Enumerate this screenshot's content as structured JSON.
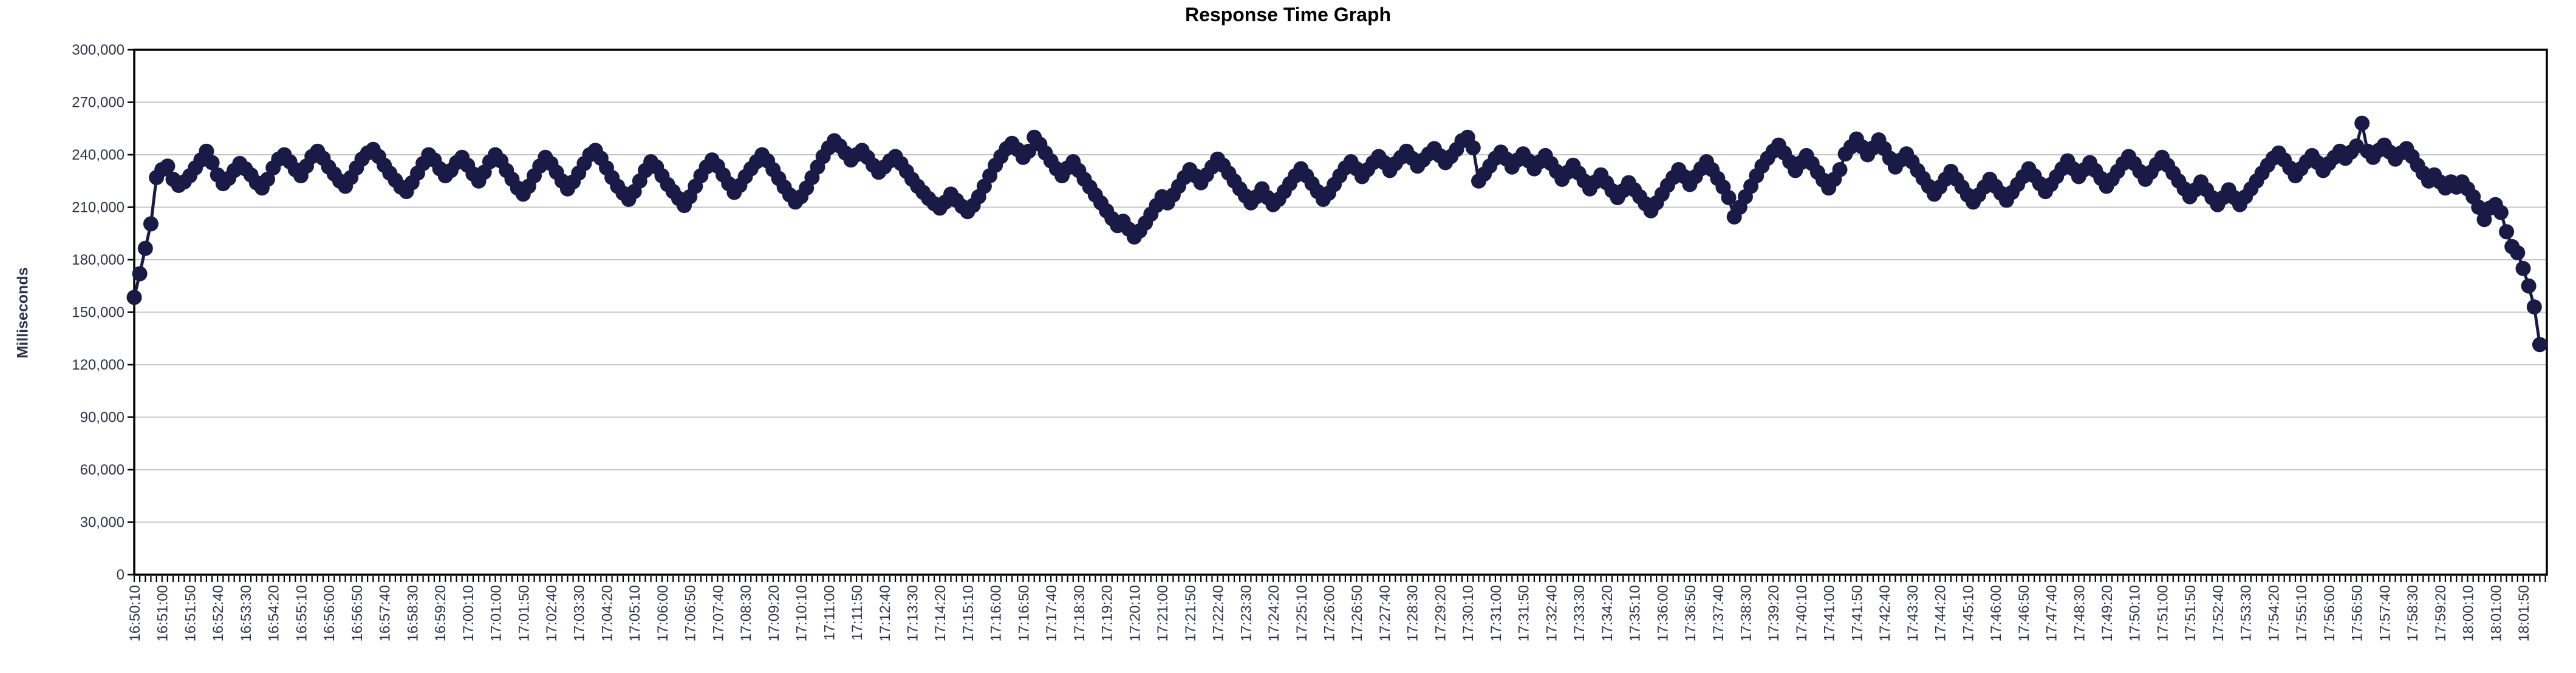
{
  "title": "Response Time Graph",
  "y_axis": {
    "title": "Milliseconds",
    "tick_labels": [
      "0",
      "30,000",
      "60,000",
      "90,000",
      "120,000",
      "150,000",
      "180,000",
      "210,000",
      "240,000",
      "270,000",
      "300,000"
    ]
  },
  "x_axis": {
    "start": "16:50:10",
    "end": "18:01:50",
    "label_interval_seconds": 50,
    "minor_tick_seconds": 10,
    "tick_labels": [
      "16:50:10",
      "16:51:00",
      "16:51:50",
      "16:52:40",
      "16:53:30",
      "16:54:20",
      "16:55:10",
      "16:56:00",
      "16:56:50",
      "16:57:40",
      "16:58:30",
      "16:59:20",
      "17:00:10",
      "17:01:00",
      "17:01:50",
      "17:02:40",
      "17:03:30",
      "17:04:20",
      "17:05:10",
      "17:06:00",
      "17:06:50",
      "17:07:40",
      "17:08:30",
      "17:09:20",
      "17:10:10",
      "17:11:00",
      "17:11:50",
      "17:12:40",
      "17:13:30",
      "17:14:20",
      "17:15:10",
      "17:16:00",
      "17:16:50",
      "17:17:40",
      "17:18:30",
      "17:19:20",
      "17:20:10",
      "17:21:00",
      "17:21:50",
      "17:22:40",
      "17:23:30",
      "17:24:20",
      "17:25:10",
      "17:26:00",
      "17:26:50",
      "17:27:40",
      "17:28:30",
      "17:29:20",
      "17:30:10",
      "17:31:00",
      "17:31:50",
      "17:32:40",
      "17:33:30",
      "17:34:20",
      "17:35:10",
      "17:36:00",
      "17:36:50",
      "17:37:40",
      "17:38:30",
      "17:39:20",
      "17:40:10",
      "17:41:00",
      "17:41:50",
      "17:42:40",
      "17:43:30",
      "17:44:20",
      "17:45:10",
      "17:46:00",
      "17:46:50",
      "17:47:40",
      "17:48:30",
      "17:49:20",
      "17:50:10",
      "17:51:00",
      "17:51:50",
      "17:52:40",
      "17:53:30",
      "17:54:20",
      "17:55:10",
      "17:56:00",
      "17:56:50",
      "17:57:40",
      "17:58:30",
      "17:59:20",
      "18:00:10",
      "18:01:00",
      "18:01:50"
    ]
  },
  "colors": {
    "series": "#1a1a46",
    "grid": "#c6c6c6",
    "axis": "#000000",
    "tick_text": "#30304a",
    "title_text": "#000000",
    "background": "#ffffff"
  },
  "chart_data": {
    "type": "line",
    "title": "Response Time Graph",
    "ylabel": "Milliseconds",
    "ylim": [
      0,
      300000
    ],
    "y_tick_step": 30000,
    "x_start": "16:50:10",
    "x_end": "18:02:20",
    "x_interval_seconds": 10,
    "x_label_interval_seconds": 50,
    "grid": "horizontal",
    "legend": "none",
    "marker": "circle",
    "values": [
      158500,
      172000,
      186500,
      200500,
      227000,
      231500,
      233500,
      226000,
      222500,
      224500,
      228000,
      232500,
      237000,
      242000,
      235500,
      228500,
      223500,
      226500,
      231000,
      235000,
      232000,
      228500,
      224000,
      221000,
      226000,
      232500,
      237500,
      240000,
      236000,
      231500,
      228000,
      233500,
      239000,
      242000,
      238000,
      233000,
      229000,
      225000,
      222000,
      227000,
      232500,
      237500,
      241000,
      243000,
      239000,
      234000,
      229500,
      225500,
      221500,
      219000,
      224000,
      229500,
      235000,
      240000,
      237000,
      232000,
      228000,
      231000,
      235500,
      238500,
      234000,
      229000,
      225000,
      230000,
      236000,
      240000,
      236500,
      231000,
      226000,
      221000,
      217500,
      222000,
      228000,
      233500,
      238500,
      235000,
      230000,
      225000,
      220500,
      224500,
      229500,
      235000,
      240000,
      242500,
      238000,
      232500,
      227000,
      222000,
      218000,
      214500,
      219000,
      225000,
      231000,
      236000,
      233000,
      228000,
      223000,
      219000,
      215000,
      211000,
      216000,
      222000,
      228000,
      233000,
      237000,
      233500,
      228500,
      223500,
      218500,
      222500,
      227500,
      232000,
      236000,
      240000,
      236500,
      231500,
      226500,
      221500,
      217000,
      213000,
      216000,
      221000,
      227000,
      233000,
      239000,
      244000,
      248000,
      245000,
      241000,
      237000,
      240000,
      242500,
      238500,
      234000,
      230000,
      233000,
      236500,
      239000,
      235000,
      230500,
      226000,
      222000,
      218500,
      215000,
      212000,
      209500,
      213000,
      217500,
      214000,
      210500,
      207500,
      211000,
      216000,
      222000,
      228000,
      234000,
      239000,
      243500,
      246500,
      243000,
      238500,
      242000,
      250000,
      246000,
      241000,
      236500,
      232000,
      228000,
      232500,
      236000,
      231000,
      226000,
      221500,
      217000,
      212500,
      208000,
      203500,
      199500,
      202000,
      197500,
      193000,
      196500,
      201000,
      206000,
      211000,
      216000,
      212500,
      217000,
      222000,
      227000,
      231500,
      228000,
      224000,
      228500,
      233000,
      237500,
      234000,
      229500,
      225000,
      220500,
      216500,
      212500,
      216000,
      220500,
      215500,
      211500,
      214500,
      219000,
      223500,
      228000,
      232000,
      228000,
      223500,
      219000,
      214500,
      218000,
      223000,
      228000,
      232500,
      236000,
      232000,
      227500,
      231500,
      235500,
      239000,
      235500,
      231000,
      235000,
      238500,
      242000,
      238000,
      233500,
      237000,
      240500,
      243500,
      239500,
      235500,
      239000,
      243000,
      248000,
      250000,
      244000,
      225000,
      229000,
      233500,
      238000,
      241500,
      237500,
      233000,
      237000,
      240500,
      236500,
      232000,
      236000,
      239500,
      235000,
      230500,
      226000,
      230000,
      234000,
      229500,
      225000,
      220500,
      224500,
      228500,
      224000,
      219500,
      215500,
      219500,
      224000,
      220000,
      216000,
      212000,
      208000,
      212500,
      217500,
      222500,
      227000,
      231500,
      227500,
      223000,
      227500,
      232000,
      236000,
      231500,
      226500,
      221500,
      215500,
      204500,
      210000,
      216000,
      222000,
      228000,
      233500,
      238000,
      242000,
      245500,
      241000,
      236000,
      231000,
      235500,
      239500,
      235000,
      230000,
      225500,
      221000,
      226000,
      231500,
      240500,
      244500,
      249000,
      244500,
      240000,
      244000,
      248500,
      243500,
      238000,
      233000,
      237000,
      240500,
      236000,
      231000,
      226500,
      222000,
      217500,
      221500,
      226000,
      230500,
      226000,
      221500,
      217000,
      213000,
      217000,
      221500,
      226000,
      222000,
      218000,
      214000,
      218500,
      223000,
      227500,
      232000,
      228000,
      223500,
      219000,
      223000,
      227500,
      232000,
      236500,
      232000,
      227500,
      231500,
      235500,
      231000,
      226500,
      222000,
      226000,
      230500,
      235000,
      239000,
      235000,
      230500,
      226000,
      230000,
      234500,
      238500,
      234000,
      229500,
      225000,
      220500,
      216000,
      220000,
      224500,
      220000,
      215500,
      211500,
      215500,
      220000,
      215500,
      211500,
      216000,
      220500,
      225000,
      229500,
      234000,
      238000,
      241000,
      237000,
      232500,
      228000,
      232000,
      236000,
      239500,
      235500,
      231000,
      235000,
      238500,
      242000,
      238000,
      241500,
      245000,
      258000,
      242000,
      238500,
      242500,
      245500,
      241500,
      237500,
      241000,
      243500,
      239000,
      234000,
      229500,
      225000,
      228500,
      224500,
      221000,
      224500,
      221500,
      224500,
      220500,
      216000,
      210000,
      203000,
      209500,
      211500,
      207000,
      196000,
      187500,
      184000,
      175000,
      165000,
      153000,
      131500
    ]
  }
}
